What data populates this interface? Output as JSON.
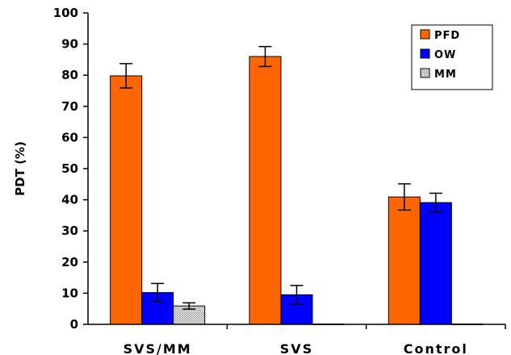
{
  "chart_data": {
    "type": "bar",
    "title": "",
    "xlabel": "",
    "ylabel": "PDT (%)",
    "ylim": [
      0,
      100
    ],
    "ytick_step": 10,
    "yticks": [
      "0",
      "10",
      "20",
      "30",
      "40",
      "50",
      "60",
      "70",
      "80",
      "90",
      "100"
    ],
    "categories": [
      "SVS/MM",
      "SVS",
      "Control"
    ],
    "grid": false,
    "legend_position": "top-right",
    "series": [
      {
        "name": "PFD",
        "color": "#ff6600",
        "pattern": "solid",
        "values": [
          79.8,
          86.0,
          40.9
        ],
        "errors": [
          3.9,
          3.2,
          4.2
        ]
      },
      {
        "name": "OW",
        "color": "#0000ff",
        "pattern": "solid",
        "values": [
          10.2,
          9.5,
          39.1
        ],
        "errors": [
          2.9,
          3.0,
          3.0
        ]
      },
      {
        "name": "MM",
        "color": "#c0c0c0",
        "pattern": "dotted",
        "values": [
          5.9,
          0,
          0
        ],
        "errors": [
          1.0,
          0,
          0
        ]
      }
    ]
  }
}
